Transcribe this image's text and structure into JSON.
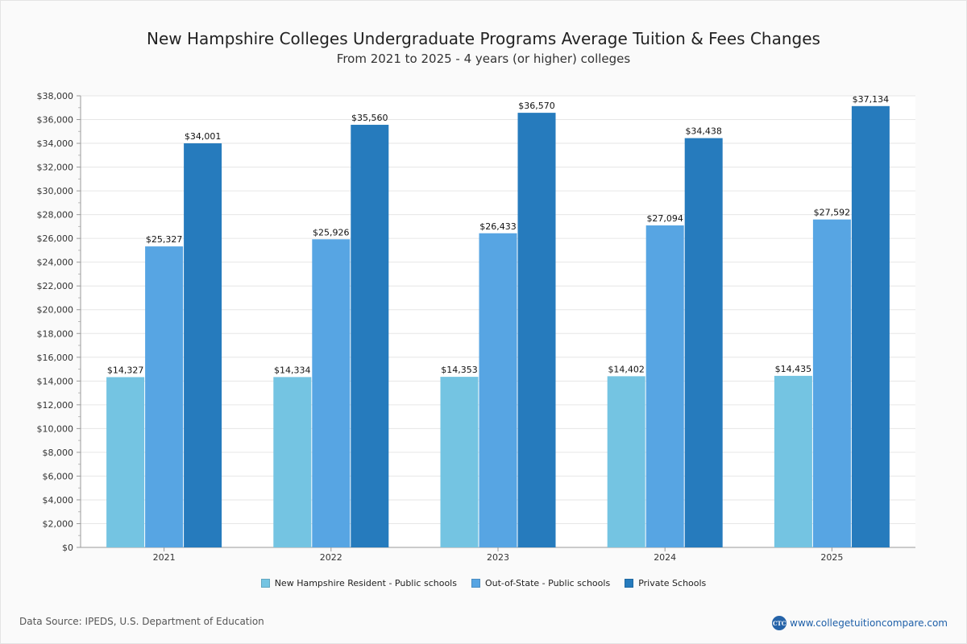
{
  "chart_data": {
    "type": "bar",
    "title": "New Hampshire Colleges Undergraduate Programs Average Tuition & Fees Changes",
    "subtitle": "From 2021 to 2025 - 4 years (or higher) colleges",
    "categories": [
      "2021",
      "2022",
      "2023",
      "2024",
      "2025"
    ],
    "series": [
      {
        "name": "New Hampshire Resident - Public schools",
        "color": "#74c4e2",
        "values": [
          14327,
          14334,
          14353,
          14402,
          14435
        ],
        "labels": [
          "$14,327",
          "$14,334",
          "$14,353",
          "$14,402",
          "$14,435"
        ]
      },
      {
        "name": "Out-of-State - Public schools",
        "color": "#57a5e3",
        "values": [
          25327,
          25926,
          26433,
          27094,
          27592
        ],
        "labels": [
          "$25,327",
          "$25,926",
          "$26,433",
          "$27,094",
          "$27,592"
        ]
      },
      {
        "name": "Private Schools",
        "color": "#267bbd",
        "values": [
          34001,
          35560,
          36570,
          34438,
          37134
        ],
        "labels": [
          "$34,001",
          "$35,560",
          "$36,570",
          "$34,438",
          "$37,134"
        ]
      }
    ],
    "ylim": [
      0,
      38000
    ],
    "yticks": [
      0,
      2000,
      4000,
      6000,
      8000,
      10000,
      12000,
      14000,
      16000,
      18000,
      20000,
      22000,
      24000,
      26000,
      28000,
      30000,
      32000,
      34000,
      36000,
      38000
    ],
    "ytick_labels": [
      "$0",
      "$2,000",
      "$4,000",
      "$6,000",
      "$8,000",
      "$10,000",
      "$12,000",
      "$14,000",
      "$16,000",
      "$18,000",
      "$20,000",
      "$22,000",
      "$24,000",
      "$26,000",
      "$28,000",
      "$30,000",
      "$32,000",
      "$34,000",
      "$36,000",
      "$38,000"
    ],
    "xlabel": "",
    "ylabel": "",
    "grid": true,
    "legend_position": "bottom-center"
  },
  "footer": {
    "source": "Data Source: IPEDS, U.S. Department of Education",
    "brand_logo": "CTC",
    "brand_url": "www.collegetuitioncompare.com"
  }
}
